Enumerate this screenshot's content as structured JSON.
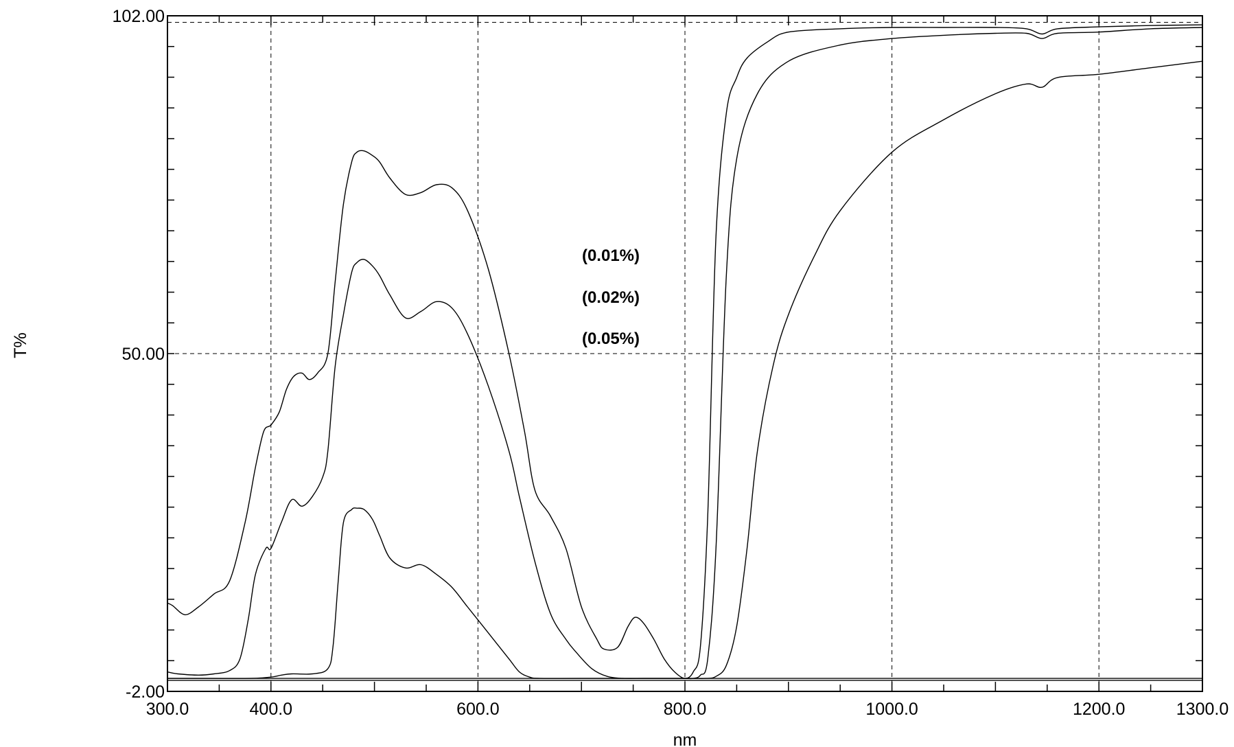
{
  "chart_data": {
    "type": "line",
    "title": "",
    "xlabel": "nm",
    "ylabel": "T%",
    "xlim": [
      300,
      1300
    ],
    "ylim": [
      -2,
      102
    ],
    "grid": true,
    "x_ticks": [
      300,
      400,
      600,
      800,
      1000,
      1200,
      1300
    ],
    "x_tick_labels": [
      "300.0",
      "400.0",
      "600.0",
      "800.0",
      "1000.0",
      "1200.0",
      "1300.0"
    ],
    "y_ticks": [
      -2,
      50,
      102
    ],
    "y_tick_labels": [
      "-2.00",
      "50.00",
      "102.00"
    ],
    "annotations": [
      "(0.01%)",
      "(0.02%)",
      "(0.05%)"
    ],
    "series": [
      {
        "x": [
          300,
          305,
          317,
          330,
          345,
          360,
          375,
          385,
          393,
          400,
          408,
          415,
          422,
          430,
          437,
          445,
          455,
          462,
          470,
          478,
          483,
          490,
          498,
          505,
          515,
          530,
          545,
          560,
          575,
          590,
          610,
          630,
          645,
          655,
          670,
          685,
          700,
          715,
          722,
          735,
          745,
          752,
          760,
          770,
          780,
          790,
          800,
          808,
          815,
          822,
          830,
          840,
          850,
          860,
          880,
          900,
          950,
          1000,
          1050,
          1100,
          1130,
          1145,
          1160,
          1200,
          1250,
          1300
        ],
        "y": [
          11.6,
          11.2,
          9.8,
          11.0,
          13.0,
          15.0,
          24.0,
          32.5,
          38.0,
          39.0,
          41.0,
          44.5,
          46.5,
          47.0,
          46.0,
          47.0,
          50.0,
          61.0,
          73.0,
          79.5,
          81.0,
          81.2,
          80.5,
          79.5,
          77.0,
          74.5,
          74.8,
          76.0,
          75.5,
          72.0,
          63.0,
          50.0,
          38.0,
          29.0,
          25.0,
          20.0,
          11.0,
          6.0,
          4.5,
          4.8,
          8.0,
          9.4,
          8.5,
          6.0,
          3.0,
          1.0,
          0.0,
          1.0,
          5.0,
          25.0,
          68.0,
          87.0,
          92.5,
          95.5,
          98.0,
          99.5,
          100.0,
          100.2,
          100.2,
          100.2,
          100.0,
          99.2,
          100.0,
          100.3,
          100.5,
          100.6
        ]
      },
      {
        "x": [
          300,
          310,
          330,
          345,
          360,
          370,
          378,
          385,
          395,
          400,
          410,
          420,
          430,
          440,
          450,
          455,
          462,
          470,
          478,
          483,
          490,
          498,
          505,
          515,
          530,
          545,
          560,
          575,
          590,
          610,
          630,
          640,
          655,
          670,
          685,
          695,
          710,
          725,
          740,
          760,
          780,
          800,
          808,
          815,
          822,
          830,
          840,
          850,
          870,
          900,
          950,
          1000,
          1050,
          1100,
          1130,
          1145,
          1160,
          1200,
          1250,
          1300
        ],
        "y": [
          1.0,
          0.7,
          0.5,
          0.7,
          1.2,
          3.0,
          9.0,
          16.0,
          20.0,
          20.0,
          24.0,
          27.5,
          26.5,
          28.0,
          31.0,
          35.0,
          48.0,
          56.0,
          62.5,
          64.0,
          64.5,
          63.5,
          62.0,
          59.0,
          55.5,
          56.5,
          58.0,
          57.0,
          53.0,
          45.0,
          35.0,
          28.0,
          18.0,
          10.0,
          6.0,
          4.0,
          1.5,
          0.3,
          0.0,
          0.0,
          0.0,
          0.0,
          0.0,
          0.5,
          3.0,
          20.0,
          62.0,
          80.0,
          90.0,
          95.0,
          97.5,
          98.5,
          99.0,
          99.3,
          99.3,
          98.5,
          99.3,
          99.5,
          100.0,
          100.2
        ]
      },
      {
        "x": [
          300,
          340,
          380,
          400,
          410,
          420,
          440,
          455,
          460,
          465,
          470,
          478,
          483,
          490,
          498,
          505,
          515,
          530,
          545,
          560,
          575,
          590,
          610,
          630,
          640,
          650,
          660,
          700,
          800,
          820,
          830,
          840,
          850,
          860,
          870,
          885,
          900,
          925,
          950,
          1000,
          1050,
          1100,
          1130,
          1145,
          1160,
          1200,
          1250,
          1300
        ],
        "y": [
          0.0,
          0.0,
          0.0,
          0.2,
          0.5,
          0.7,
          0.7,
          1.5,
          5.0,
          15.0,
          24.0,
          26.0,
          26.2,
          26.0,
          24.5,
          22.0,
          18.5,
          17.0,
          17.5,
          16.0,
          14.0,
          11.0,
          7.0,
          3.0,
          1.0,
          0.2,
          0.0,
          0.0,
          0.0,
          0.0,
          0.3,
          2.0,
          8.0,
          20.0,
          35.0,
          48.0,
          56.0,
          65.0,
          72.0,
          81.0,
          86.0,
          90.0,
          91.5,
          91.0,
          92.5,
          93.0,
          94.0,
          95.0
        ]
      },
      {
        "x": [
          300,
          1300
        ],
        "y": [
          0.0,
          0.0
        ]
      },
      {
        "x": [
          300,
          1300
        ],
        "y": [
          -0.3,
          -0.3
        ]
      }
    ]
  }
}
